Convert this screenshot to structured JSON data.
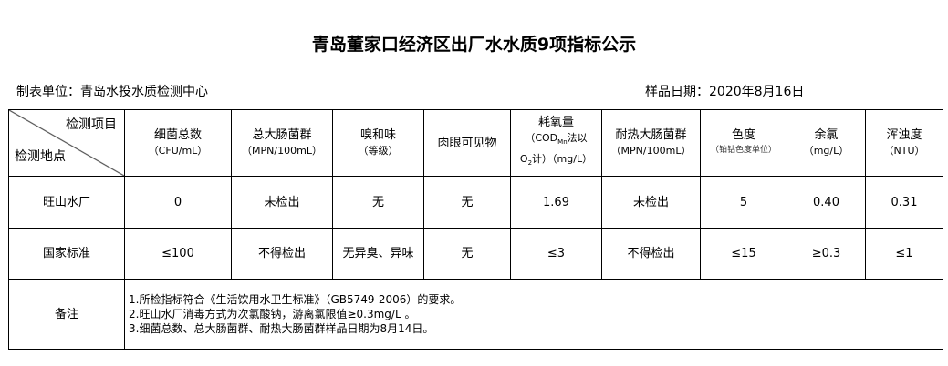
{
  "title": "青岛董家口经济区出厂水水质9项指标公示",
  "unit": "制表单位：青岛水投水质检测中心",
  "date": "样品日期：2020年8月16日",
  "corner": {
    "item": "检测项目",
    "place": "检测地点"
  },
  "headers": [
    {
      "name": "细菌总数",
      "unit": "（CFU/mL）"
    },
    {
      "name": "总大肠菌群",
      "unit": "（MPN/100mL）"
    },
    {
      "name": "嗅和味",
      "unit": "（等级）"
    },
    {
      "name": "肉眼可见物",
      "unit": ""
    },
    {
      "name": "耗氧量",
      "unit": "（COD",
      "unit_sub": "Mn",
      "unit2": "法以",
      "unit3": "O",
      "unit3_sub": "2",
      "unit4": "计）（mg/L）"
    },
    {
      "name": "耐热大肠菌群",
      "unit": "（MPN/100mL）"
    },
    {
      "name": "色度",
      "unit": "（铂钴色度单位）"
    },
    {
      "name": "余氯",
      "unit": "（mg/L）"
    },
    {
      "name": "浑浊度",
      "unit": "（NTU）"
    }
  ],
  "rows": [
    {
      "place": "旺山水厂",
      "values": [
        "0",
        "未检出",
        "无",
        "无",
        "1.69",
        "未检出",
        "5",
        "0.40",
        "0.31"
      ]
    },
    {
      "place": "国家标准",
      "values": [
        "≤100",
        "不得检出",
        "无异臭、异味",
        "无",
        "≤3",
        "不得检出",
        "≤15",
        "≥0.3",
        "≤1"
      ]
    }
  ],
  "notes": {
    "label": "备注",
    "lines": [
      "1.所检指标符合《生活饮用水卫生标准》（GB5749-2006）的要求。",
      "2.旺山水厂消毒方式为次氯酸钠，游离氯限值≥0.3mg/L 。",
      "3.细菌总数、总大肠菌群、耐热大肠菌群样品日期为8月14日。"
    ]
  }
}
